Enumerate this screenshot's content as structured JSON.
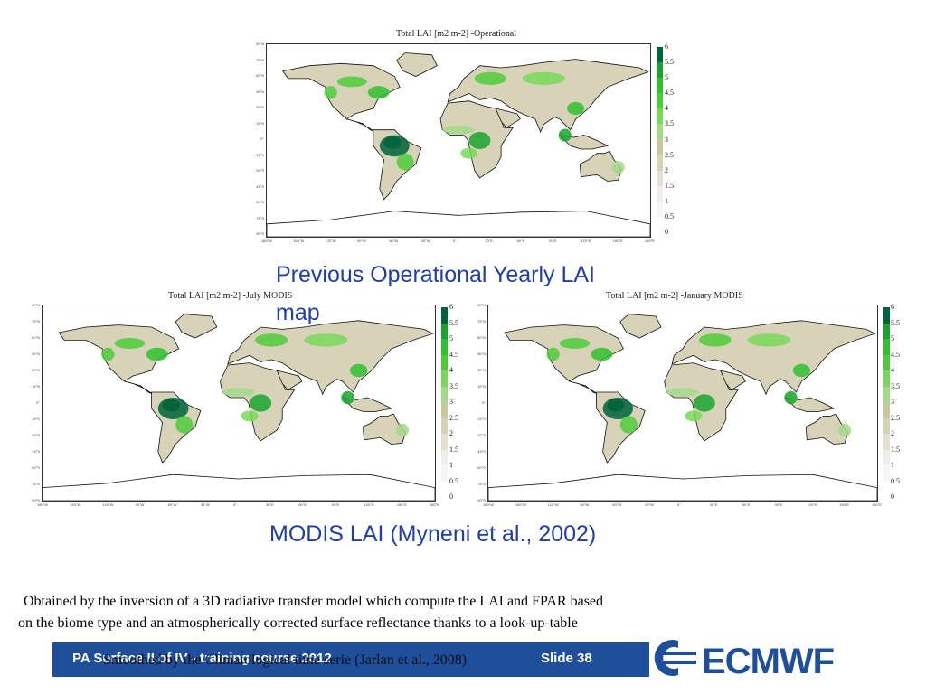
{
  "maps": {
    "operational": {
      "title": "Total LAI [m2 m-2] -Operational"
    },
    "july": {
      "title": "Total LAI [m2 m-2] -July MODIS"
    },
    "january": {
      "title": "Total LAI [m2 m-2] -January MODIS"
    }
  },
  "colorbar": {
    "ticks": [
      "6",
      "5.5",
      "5",
      "4.5",
      "4",
      "3.5",
      "3",
      "2.5",
      "2",
      "1.5",
      "1",
      "0.5",
      "0"
    ],
    "colors": [
      "#00633a",
      "#17a42d",
      "#2fbf2f",
      "#4fcb3a",
      "#79d85a",
      "#a5d98a",
      "#c9c6a0",
      "#d8d3b8",
      "#e4e1d3",
      "#eeeeee",
      "#f6f6f6",
      "#ffffff"
    ]
  },
  "axis_labels": {
    "lat": [
      "90°N",
      "75°N",
      "60°N",
      "45°N",
      "30°N",
      "15°N",
      "0°",
      "15°S",
      "30°S",
      "45°S",
      "60°S",
      "75°S",
      "90°S"
    ],
    "lon": [
      "180°W",
      "150°W",
      "120°W",
      "90°W",
      "60°W",
      "30°W",
      "0°",
      "30°E",
      "60°E",
      "90°E",
      "120°E",
      "150°E",
      "180°E"
    ]
  },
  "headings": {
    "previous": "Previous Operational Yearly LAI map",
    "modis": "MODIS LAI (Myneni et al., 2002)"
  },
  "body": {
    "line1": " Obtained by the inversion of a 3D radiative transfer model which compute the LAI and FPAR based",
    "line2": "on the biome type and an atmospherically corrected surface reflectance thanks to a look-up-table",
    "line3_hidden": "Smoothed by the Climatological time serie (Jarlan et al., 2008)"
  },
  "footer": {
    "course": "PA Surface II of IV - training course 2012",
    "slide": "Slide 38",
    "logo_text": "ECMWF"
  }
}
